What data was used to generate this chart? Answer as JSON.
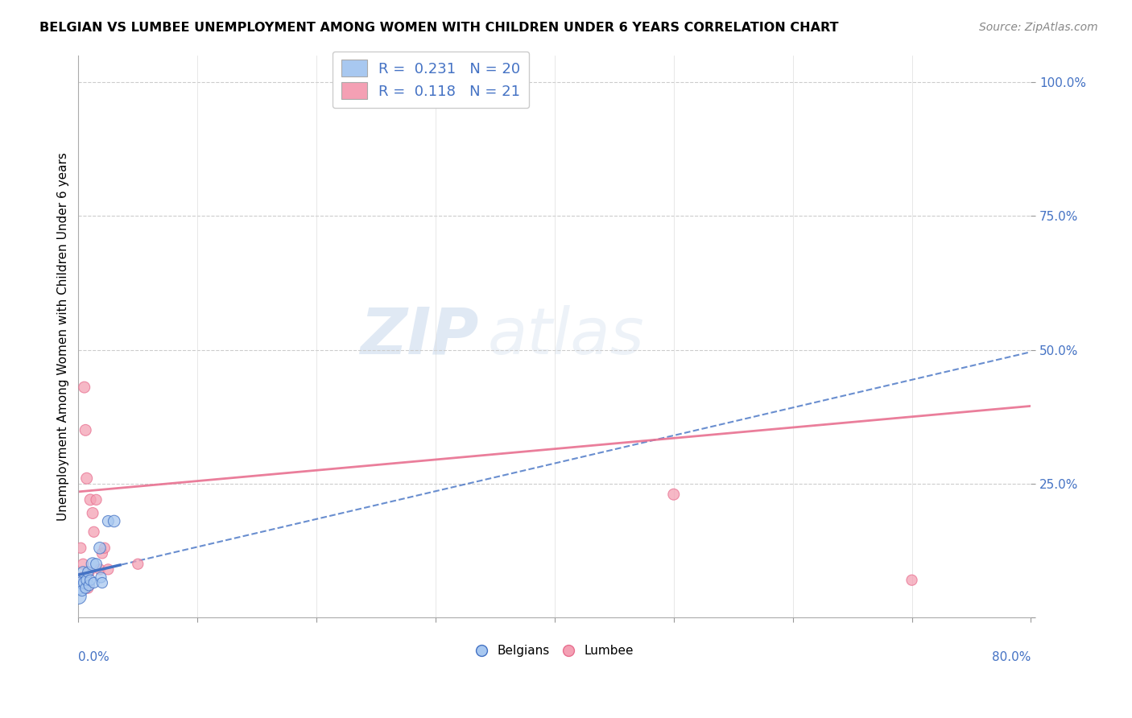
{
  "title": "BELGIAN VS LUMBEE UNEMPLOYMENT AMONG WOMEN WITH CHILDREN UNDER 6 YEARS CORRELATION CHART",
  "source": "Source: ZipAtlas.com",
  "ylabel": "Unemployment Among Women with Children Under 6 years",
  "xlim": [
    0.0,
    0.8
  ],
  "ylim": [
    0.0,
    1.05
  ],
  "yticks": [
    0.0,
    0.25,
    0.5,
    0.75,
    1.0
  ],
  "ytick_labels": [
    "",
    "25.0%",
    "50.0%",
    "75.0%",
    "100.0%"
  ],
  "xticks": [
    0.0,
    0.1,
    0.2,
    0.3,
    0.4,
    0.5,
    0.6,
    0.7,
    0.8
  ],
  "belgian_R": 0.231,
  "belgian_N": 20,
  "lumbee_R": 0.118,
  "lumbee_N": 21,
  "belgian_color": "#A8C8F0",
  "lumbee_color": "#F4A0B4",
  "belgian_line_color": "#4472C4",
  "lumbee_line_color": "#E87090",
  "belgian_line_solid_start": 0.0,
  "belgian_line_solid_end": 0.035,
  "belgian_line_y0": 0.08,
  "belgian_line_slope": 0.52,
  "lumbee_line_y0": 0.235,
  "lumbee_line_slope": 0.2,
  "belgians_x": [
    0.0,
    0.0,
    0.001,
    0.002,
    0.003,
    0.004,
    0.005,
    0.006,
    0.007,
    0.008,
    0.009,
    0.01,
    0.012,
    0.013,
    0.015,
    0.018,
    0.019,
    0.02,
    0.025,
    0.03
  ],
  "belgians_y": [
    0.04,
    0.07,
    0.055,
    0.065,
    0.05,
    0.085,
    0.065,
    0.055,
    0.07,
    0.085,
    0.06,
    0.07,
    0.1,
    0.065,
    0.1,
    0.13,
    0.075,
    0.065,
    0.18,
    0.18
  ],
  "belgians_size": [
    200,
    140,
    120,
    110,
    90,
    100,
    110,
    90,
    100,
    90,
    90,
    90,
    130,
    90,
    100,
    110,
    90,
    90,
    100,
    110
  ],
  "lumbee_x": [
    0.0,
    0.001,
    0.002,
    0.003,
    0.004,
    0.005,
    0.006,
    0.007,
    0.008,
    0.009,
    0.01,
    0.012,
    0.013,
    0.015,
    0.018,
    0.02,
    0.022,
    0.025,
    0.05,
    0.5,
    0.7
  ],
  "lumbee_y": [
    0.055,
    0.065,
    0.13,
    0.075,
    0.1,
    0.43,
    0.35,
    0.26,
    0.055,
    0.085,
    0.22,
    0.195,
    0.16,
    0.22,
    0.09,
    0.12,
    0.13,
    0.09,
    0.1,
    0.23,
    0.07
  ],
  "lumbee_size": [
    90,
    90,
    90,
    90,
    90,
    100,
    100,
    100,
    90,
    90,
    100,
    100,
    90,
    90,
    90,
    90,
    90,
    90,
    90,
    100,
    90
  ]
}
